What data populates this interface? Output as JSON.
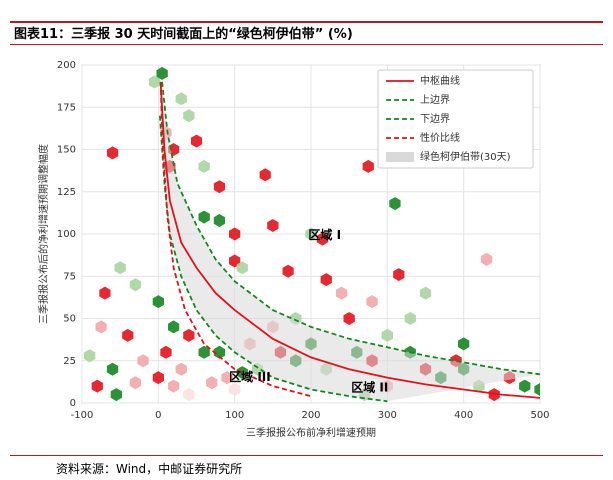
{
  "chart_data": {
    "type": "hexbin",
    "title": "图表11：三季报 30 天时间截面上的“绿色柯伊伯带” (%)",
    "source": "资料来源：Wind，中邮证券研究所",
    "xlabel": "三季报报公布前净利增速预期",
    "ylabel": "三季报报公布后的净利增速预期调整幅度",
    "xlim": [
      -100,
      500
    ],
    "xticks": [
      -100,
      0,
      100,
      200,
      300,
      400,
      500
    ],
    "ylim": [
      0,
      200
    ],
    "yticks": [
      0,
      25,
      50,
      75,
      100,
      125,
      150,
      175,
      200
    ],
    "grid": true,
    "legend": "upper right",
    "annotations": [
      {
        "text": "区域 I",
        "x": 218,
        "y": 99
      },
      {
        "text": "区域 II",
        "x": 277,
        "y": 9
      },
      {
        "text": "区域 III",
        "x": 120,
        "y": 15
      }
    ],
    "hexbins": {
      "x": [
        -60,
        -5,
        5,
        30,
        40,
        10,
        20,
        15,
        50,
        60,
        80,
        60,
        80,
        100,
        100,
        110,
        140,
        150,
        170,
        200,
        215,
        220,
        275,
        310,
        315,
        430,
        -70,
        -50,
        -30,
        0,
        20,
        40,
        60,
        80,
        -40,
        -60,
        -80,
        -90,
        -20,
        0,
        20,
        40,
        70,
        100,
        130,
        160,
        180,
        200,
        220,
        250,
        260,
        280,
        300,
        330,
        350,
        370,
        390,
        400,
        420,
        440,
        460,
        480,
        500,
        330,
        350,
        280,
        240,
        180,
        150,
        120,
        -75,
        -55,
        -30,
        10,
        30,
        90,
        110,
        270,
        300,
        400
      ],
      "y": [
        148,
        190,
        195,
        180,
        170,
        160,
        150,
        140,
        155,
        140,
        128,
        110,
        108,
        100,
        84,
        80,
        135,
        105,
        78,
        100,
        97,
        73,
        140,
        118,
        76,
        85,
        65,
        80,
        70,
        60,
        45,
        40,
        30,
        30,
        40,
        20,
        10,
        28,
        25,
        15,
        10,
        5,
        12,
        8,
        20,
        30,
        25,
        35,
        20,
        50,
        30,
        25,
        40,
        30,
        20,
        15,
        25,
        20,
        10,
        5,
        15,
        10,
        8,
        50,
        65,
        60,
        65,
        50,
        45,
        35,
        45,
        5,
        12,
        30,
        20,
        15,
        18,
        5,
        10,
        35
      ],
      "colors": [
        "#e3121b",
        "#a8d49e",
        "#14871f",
        "#a8d49e",
        "#a8d49e",
        "#f4a6a6",
        "#e3121b",
        "#e3121b",
        "#e3121b",
        "#a8d49e",
        "#e3121b",
        "#14871f",
        "#14871f",
        "#e3121b",
        "#e3121b",
        "#a8d49e",
        "#e3121b",
        "#e3121b",
        "#e3121b",
        "#a8d49e",
        "#e3121b",
        "#e3121b",
        "#e3121b",
        "#14871f",
        "#e3121b",
        "#f4a6a6",
        "#e3121b",
        "#a8d49e",
        "#a8d49e",
        "#14871f",
        "#14871f",
        "#e3121b",
        "#14871f",
        "#14871f",
        "#e3121b",
        "#14871f",
        "#e3121b",
        "#a8d49e",
        "#f4a6a6",
        "#e3121b",
        "#f4a6a6",
        "#fbe0e0",
        "#f4a6a6",
        "#fbe0e0",
        "#a8d49e",
        "#e3121b",
        "#14871f",
        "#14871f",
        "#a8d49e",
        "#e3121b",
        "#14871f",
        "#e3121b",
        "#a8d49e",
        "#14871f",
        "#e3121b",
        "#14871f",
        "#e3121b",
        "#14871f",
        "#a8d49e",
        "#e3121b",
        "#e3121b",
        "#14871f",
        "#14871f",
        "#a8d49e",
        "#a8d49e",
        "#f4a6a6",
        "#f4a6a6",
        "#a8d49e",
        "#f4a6a6",
        "#f4a6a6",
        "#f4a6a6",
        "#14871f",
        "#f4a6a6",
        "#e3121b",
        "#f4a6a6",
        "#f4a6a6",
        "#14871f",
        "#a8d49e",
        "#f4a6a6",
        "#14871f"
      ]
    },
    "series": [
      {
        "name": "中枢曲线",
        "color": "#e3121b",
        "dash": false,
        "x": [
          3,
          8,
          15,
          30,
          50,
          75,
          100,
          150,
          200,
          250,
          300,
          350,
          400,
          450,
          500
        ],
        "values": [
          190,
          150,
          120,
          95,
          80,
          65,
          55,
          38,
          27,
          20,
          15,
          11,
          8,
          5,
          3
        ]
      },
      {
        "name": "上边界",
        "color": "#14871f",
        "dash": true,
        "x": [
          5,
          12,
          25,
          50,
          75,
          100,
          150,
          200,
          250,
          300,
          350,
          400,
          450,
          500
        ],
        "values": [
          190,
          160,
          130,
          105,
          85,
          72,
          55,
          45,
          38,
          33,
          28,
          24,
          20,
          17
        ]
      },
      {
        "name": "下边界",
        "color": "#14871f",
        "dash": true,
        "x": [
          2,
          8,
          15,
          30,
          50,
          75,
          100,
          150,
          200,
          250,
          300
        ],
        "values": [
          170,
          130,
          100,
          75,
          55,
          40,
          30,
          15,
          8,
          4,
          1
        ]
      },
      {
        "name": "性价比线",
        "color": "#e3121b",
        "dash": true,
        "x": [
          3,
          6,
          12,
          20,
          35,
          60,
          100,
          150,
          200
        ],
        "values": [
          190,
          150,
          110,
          80,
          55,
          35,
          20,
          10,
          4
        ]
      }
    ],
    "band": {
      "name": "绿色柯伊伯带(30天)",
      "color": "#d9d9d9"
    }
  }
}
